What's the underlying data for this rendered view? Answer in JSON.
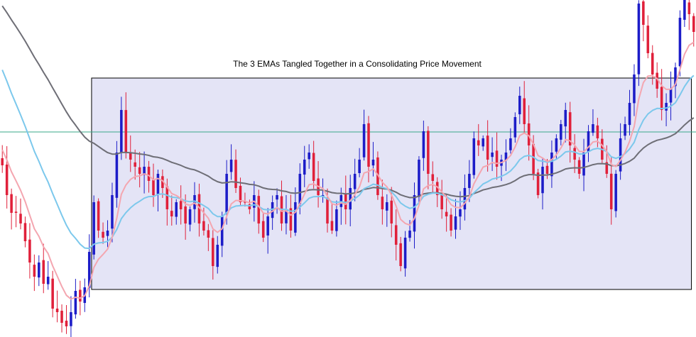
{
  "chart_data": {
    "type": "candlestick",
    "title": "The 3 EMAs Tangled Together in a Consolidating Price Movement",
    "xlabel": "",
    "ylabel": "",
    "ylim": [
      0,
      475
    ],
    "price_axis_note": "price units are unlabeled; values are relative price levels, higher = higher price",
    "horizontal_line": {
      "value": 289,
      "color": "#3aa88a"
    },
    "consolidation_box": {
      "x_start_index": 20,
      "x_end_index": 150,
      "price_high": 365,
      "price_low": 67,
      "fill": "#e4e4f6",
      "stroke": "#000000"
    },
    "colors": {
      "bullish": "#1c1cc8",
      "bearish": "#e0203a",
      "ema_fast": "#f4a6b0",
      "ema_mid": "#7cc8ec",
      "ema_slow": "#6e6e76"
    },
    "ema_fast_name": "",
    "ema_mid_name": "",
    "ema_slow_name": "",
    "ema_period_fast": 8,
    "ema_period_mid": 21,
    "ema_period_slow": 55,
    "ema_seed_fast": 270,
    "ema_seed_mid": 390,
    "ema_seed_slow": 475,
    "closes": [
      242,
      200,
      175,
      175,
      160,
      135,
      105,
      85,
      105,
      75,
      85,
      40,
      35,
      20,
      15,
      35,
      65,
      50,
      70,
      120,
      190,
      150,
      140,
      150,
      200,
      260,
      320,
      260,
      250,
      240,
      230,
      240,
      220,
      200,
      230,
      210,
      180,
      170,
      190,
      180,
      160,
      180,
      200,
      160,
      150,
      140,
      100,
      130,
      170,
      230,
      250,
      210,
      190,
      190,
      180,
      200,
      160,
      140,
      170,
      190,
      200,
      160,
      180,
      150,
      190,
      230,
      250,
      260,
      220,
      200,
      200,
      160,
      150,
      180,
      200,
      180,
      210,
      230,
      250,
      300,
      240,
      250,
      200,
      180,
      190,
      160,
      130,
      100,
      140,
      150,
      200,
      250,
      290,
      230,
      220,
      200,
      180,
      170,
      150,
      170,
      180,
      210,
      230,
      280,
      270,
      280,
      250,
      260,
      240,
      250,
      260,
      280,
      310,
      340,
      300,
      270,
      230,
      200,
      240,
      230,
      260,
      280,
      300,
      320,
      270,
      250,
      230,
      260,
      290,
      300,
      280,
      250,
      230,
      180,
      230,
      280,
      300,
      330,
      370,
      470,
      440,
      400,
      370,
      350,
      320,
      330,
      350,
      380,
      450,
      475,
      455,
      430
    ]
  }
}
